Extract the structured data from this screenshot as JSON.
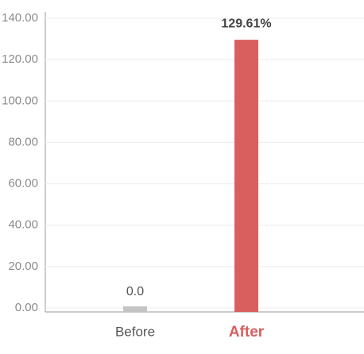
{
  "chart_data": {
    "type": "bar",
    "categories": [
      "Before",
      "After"
    ],
    "values": [
      0,
      129.61
    ],
    "value_labels": [
      "0.0",
      "129.61%"
    ],
    "colors": [
      "#c4c4c4",
      "#d95f5f"
    ],
    "highlight": 1,
    "ylim": [
      0,
      140
    ],
    "yticks": [
      {
        "value": 0,
        "label": "0.00"
      },
      {
        "value": 20,
        "label": "20.00"
      },
      {
        "value": 40,
        "label": "40.00"
      },
      {
        "value": 60,
        "label": "60.00"
      },
      {
        "value": 80,
        "label": "80.00"
      },
      {
        "value": 100,
        "label": "100.00"
      },
      {
        "value": 120,
        "label": "120.00"
      },
      {
        "value": 140,
        "label": "140.00"
      }
    ],
    "grid": true
  }
}
